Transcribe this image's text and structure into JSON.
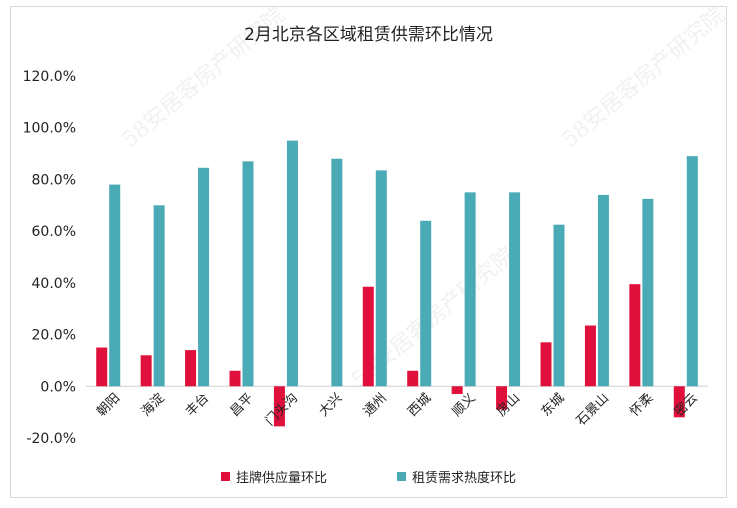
{
  "chart_data": {
    "type": "bar",
    "title": "2月北京各区域租赁供需环比情况",
    "categories": [
      "朝阳",
      "海淀",
      "丰台",
      "昌平",
      "门头沟",
      "大兴",
      "通州",
      "西城",
      "顺义",
      "房山",
      "东城",
      "石景山",
      "怀柔",
      "密云"
    ],
    "series": [
      {
        "name": "挂牌供应量环比",
        "color": "#e0103c",
        "values": [
          15.0,
          12.0,
          14.0,
          6.0,
          -15.5,
          0.0,
          38.5,
          6.0,
          -3.0,
          -9.0,
          17.0,
          23.5,
          39.5,
          -12.0
        ]
      },
      {
        "name": "租赁需求热度环比",
        "color": "#4aaab5",
        "values": [
          78.0,
          70.0,
          84.5,
          87.0,
          95.0,
          88.0,
          83.5,
          64.0,
          75.0,
          75.0,
          62.5,
          74.0,
          72.5,
          89.0
        ]
      }
    ],
    "ylim": [
      -20.0,
      120.0
    ],
    "yticks": [
      "-20.0%",
      "0.0%",
      "20.0%",
      "40.0%",
      "60.0%",
      "80.0%",
      "100.0%",
      "120.0%"
    ],
    "ytick_values": [
      -20,
      0,
      20,
      40,
      60,
      80,
      100,
      120
    ],
    "grid": false,
    "legend_position": "bottom"
  },
  "watermark": "58安居客房产研究院"
}
